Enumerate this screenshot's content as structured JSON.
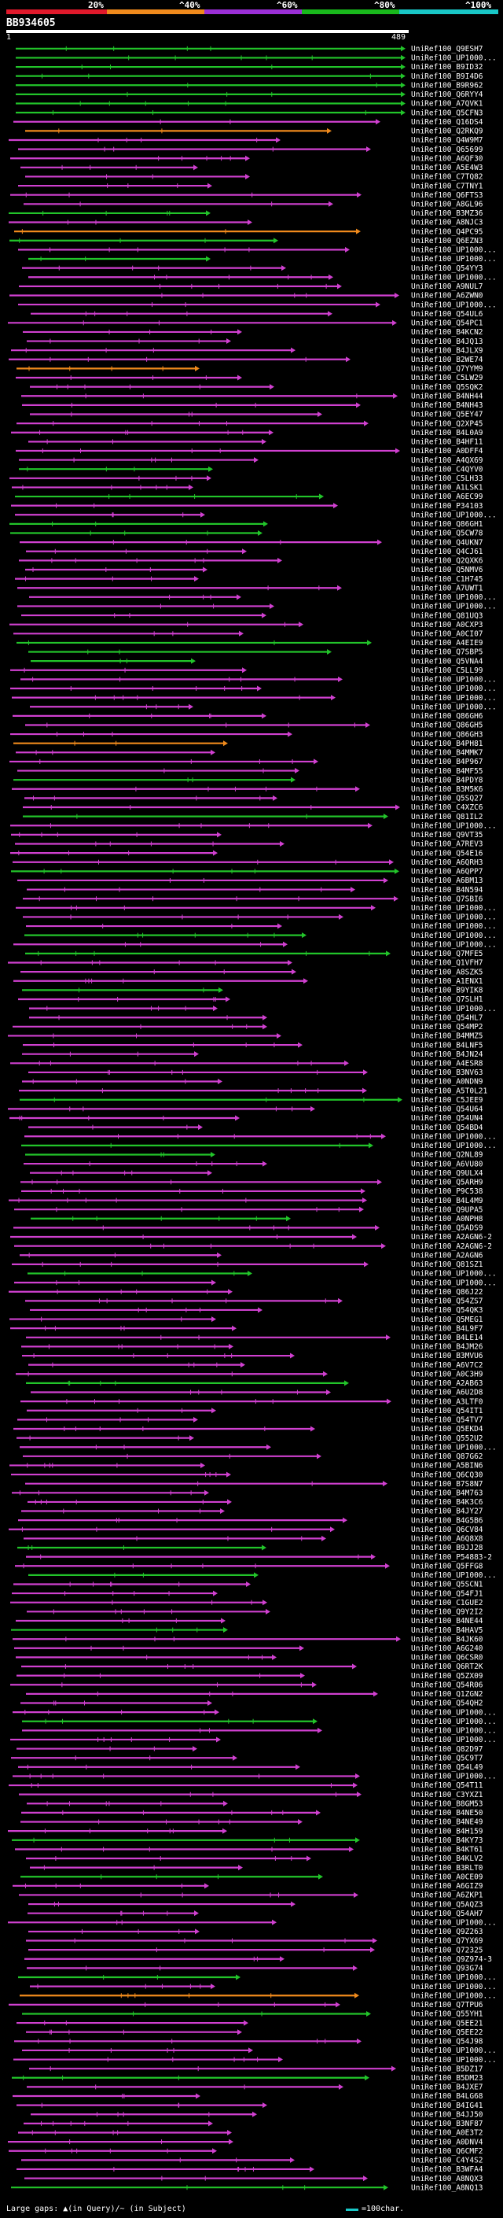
{
  "scale": {
    "ticks": [
      "20%",
      "^40%",
      "^60%",
      "^80%",
      "^100%"
    ],
    "colors": [
      "#e0192b",
      "#f08a1c",
      "#9b2fd6",
      "#19b81c",
      "#19c7c7"
    ]
  },
  "query": {
    "id": "BB934605",
    "start": "1",
    "end": "489"
  },
  "hit_colors": {
    "magenta": "#d040d0",
    "green": "#22c42a",
    "orange": "#f08a1c",
    "cyan": "#19c7c7",
    "white": "#ffffff"
  },
  "hits": [
    "UniRef100_Q9ESH7",
    "UniRef100_UP1000...",
    "UniRef100_B9ID32",
    "UniRef100_B9I4D6",
    "UniRef100_B9R962",
    "UniRef100_Q6RYY4",
    "UniRef100_A7QVK1",
    "UniRef100_Q5CFN3",
    "UniRef100_Q16DS4",
    "UniRef100_Q2RKQ9",
    "UniRef100_Q4W9M7",
    "UniRef100_Q65699",
    "UniRef100_A6QF30",
    "UniRef100_A5E4W3",
    "UniRef100_C7TQ82",
    "UniRef100_C7TNY1",
    "UniRef100_Q6FTS3",
    "UniRef100_A8GL96",
    "UniRef100_B3MZ36",
    "UniRef100_A8NJC3",
    "UniRef100_Q4PC95",
    "UniRef100_Q6EZN3",
    "UniRef100_UP1000...",
    "UniRef100_UP1000...",
    "UniRef100_Q54YY3",
    "UniRef100_UP1000...",
    "UniRef100_A9NUL7",
    "UniRef100_A6ZWN0",
    "UniRef100_UP1000...",
    "UniRef100_Q54UL6",
    "UniRef100_Q54PC1",
    "UniRef100_B4KCN2",
    "UniRef100_B4JQ13",
    "UniRef100_B4JLX9",
    "UniRef100_B2WE74",
    "UniRef100_Q7YYM9",
    "UniRef100_C5LW29",
    "UniRef100_Q5SQK2",
    "UniRef100_B4NH44",
    "UniRef100_B4NH43",
    "UniRef100_Q5EY47",
    "UniRef100_Q2XP45",
    "UniRef100_B4L0A9",
    "UniRef100_B4HF11",
    "UniRef100_A0DFF4",
    "UniRef100_A4QX69",
    "UniRef100_C4QYV0",
    "UniRef100_C5LH33",
    "UniRef100_A1LSK1",
    "UniRef100_A6EC99",
    "UniRef100_P34103",
    "UniRef100_UP1000...",
    "UniRef100_Q86GH1",
    "UniRef100_Q5CW78",
    "UniRef100_Q4UKN7",
    "UniRef100_Q4CJ61",
    "UniRef100_Q2QXK6",
    "UniRef100_Q5NMV6",
    "UniRef100_C1H745",
    "UniRef100_A7UWT1",
    "UniRef100_UP1000...",
    "UniRef100_UP1000...",
    "UniRef100_Q81UQ3",
    "UniRef100_A0CXP3",
    "UniRef100_A0CI07",
    "UniRef100_A4EIE9",
    "UniRef100_Q7SBP5",
    "UniRef100_Q5VNA4",
    "UniRef100_C5LL99",
    "UniRef100_UP1000...",
    "UniRef100_UP1000...",
    "UniRef100_UP1000...",
    "UniRef100_UP1000...",
    "UniRef100_Q86GH6",
    "UniRef100_Q86GH5",
    "UniRef100_Q86GH3",
    "UniRef100_B4PH81",
    "UniRef100_B4MMK7",
    "UniRef100_B4P967",
    "UniRef100_B4MF55",
    "UniRef100_B4PDY8",
    "UniRef100_B3M5K6",
    "UniRef100_Q5SQ27",
    "UniRef100_C4XZC6",
    "UniRef100_Q81IL2",
    "UniRef100_UP1000...",
    "UniRef100_Q9VT35",
    "UniRef100_A7REV3",
    "UniRef100_Q54E16",
    "UniRef100_A6QRH3",
    "UniRef100_A6QPP7",
    "UniRef100_A6BM13",
    "UniRef100_B4N594",
    "UniRef100_Q7SBI6",
    "UniRef100_UP1000...",
    "UniRef100_UP1000...",
    "UniRef100_UP1000...",
    "UniRef100_UP1000...",
    "UniRef100_UP1000...",
    "UniRef100_Q7MFE5",
    "UniRef100_Q1VFH7",
    "UniRef100_A8SZK5",
    "UniRef100_A1ENX1",
    "UniRef100_B9YIK8",
    "UniRef100_Q7SLH1",
    "UniRef100_UP1000...",
    "UniRef100_Q54HL7",
    "UniRef100_Q54MP2",
    "UniRef100_B4MMZ5",
    "UniRef100_B4LNF5",
    "UniRef100_B4JN24",
    "UniRef100_A4ESR8",
    "UniRef100_B3NV63",
    "UniRef100_A0NDN9",
    "UniRef100_A5T0L21",
    "UniRef100_C5JEE9",
    "UniRef100_Q54U64",
    "UniRef100_Q54UN4",
    "UniRef100_Q54BD4",
    "UniRef100_UP1000...",
    "UniRef100_UP1000...",
    "UniRef100_Q2NL89",
    "UniRef100_A6VU80",
    "UniRef100_Q9ULX4",
    "UniRef100_Q5ARH9",
    "UniRef100_P9C538",
    "UniRef100_B4L4M9",
    "UniRef100_Q9UPA5",
    "UniRef100_A0NPH8",
    "UniRef100_Q5ADS9",
    "UniRef100_A2AGN6-2",
    "UniRef100_A2AGN6-2",
    "UniRef100_A2AGN6",
    "UniRef100_Q81SZ1",
    "UniRef100_UP1000...",
    "UniRef100_UP1000...",
    "UniRef100_Q86J22",
    "UniRef100_Q54ZS7",
    "UniRef100_Q54QK3",
    "UniRef100_Q5MEG1",
    "UniRef100_B4L9F7",
    "UniRef100_B4LE14",
    "UniRef100_B4JM26",
    "UniRef100_B3MVU6",
    "UniRef100_A6V7C2",
    "UniRef100_A0C3H9",
    "UniRef100_A2AB63",
    "UniRef100_A6U2D8",
    "UniRef100_A3LTF0",
    "UniRef100_Q54IT1",
    "UniRef100_Q54TV7",
    "UniRef100_Q5EKD4",
    "UniRef100_Q552U2",
    "UniRef100_UP1000...",
    "UniRef100_Q87G62",
    "UniRef100_A5BIN6",
    "UniRef100_Q6CQ30",
    "UniRef100_B7S8N7",
    "UniRef100_B4M763",
    "UniRef100_B4K3C6",
    "UniRef100_B4JY27",
    "UniRef100_B4G5B6",
    "UniRef100_Q6CV84",
    "UniRef100_A6Q8X8",
    "UniRef100_B9JJ28",
    "UniRef100_P54883-2",
    "UniRef100_Q5FFG8",
    "UniRef100_UP1000...",
    "UniRef100_Q5SCN1",
    "UniRef100_Q54FJ1",
    "UniRef100_C1GUE2",
    "UniRef100_Q9Y2I2",
    "UniRef100_B4NE44",
    "UniRef100_B4HAV5",
    "UniRef100_B4JK60",
    "UniRef100_A6G240",
    "UniRef100_Q6CSR0",
    "UniRef100_Q6RT2K",
    "UniRef100_Q5ZX09",
    "UniRef100_Q54R06",
    "UniRef100_Q1ZGN2",
    "UniRef100_Q54QH2",
    "UniRef100_UP1000...",
    "UniRef100_UP1000...",
    "UniRef100_UP1000...",
    "UniRef100_UP1000...",
    "UniRef100_Q82D97",
    "UniRef100_Q5C9T7",
    "UniRef100_Q54L49",
    "UniRef100_UP1000...",
    "UniRef100_Q54T11",
    "UniRef100_C3YXZ1",
    "UniRef100_B8GM53",
    "UniRef100_B4NE50",
    "UniRef100_B4NE49",
    "UniRef100_B4H159",
    "UniRef100_B4KY73",
    "UniRef100_B4KT61",
    "UniRef100_B4KLV2",
    "UniRef100_B3RLT0",
    "UniRef100_A0CE09",
    "UniRef100_A6GIZ9",
    "UniRef100_A6ZKP1",
    "UniRef100_Q5AQZ3",
    "UniRef100_Q54AH7",
    "UniRef100_UP1000...",
    "UniRef100_Q9Z263",
    "UniRef100_Q7YX69",
    "UniRef100_Q72325",
    "UniRef100_Q9Z974-3",
    "UniRef100_Q93G74",
    "UniRef100_UP1000...",
    "UniRef100_UP1000...",
    "UniRef100_UP1000...",
    "UniRef100_Q7TPU6",
    "UniRef100_Q55YH1",
    "UniRef100_Q5EE21",
    "UniRef100_Q5EE22",
    "UniRef100_Q54J98",
    "UniRef100_UP1000...",
    "UniRef100_UP1000...",
    "UniRef100_B5DZ17",
    "UniRef100_B5DM23",
    "UniRef100_B4JXE7",
    "UniRef100_B4LG68",
    "UniRef100_B4IG41",
    "UniRef100_B4JJ50",
    "UniRef100_B3NF87",
    "UniRef100_A0E3T2",
    "UniRef100_A0DNV4",
    "UniRef100_Q6CMF2",
    "UniRef100_C4Y4S2",
    "UniRef100_B3WFA4",
    "UniRef100_A8NQX3",
    "UniRef100_A8NQ13"
  ],
  "footer": {
    "legend_left": "Large gaps: ▲(in Query)/~ (in Subject)",
    "legend_right": "=100char."
  }
}
